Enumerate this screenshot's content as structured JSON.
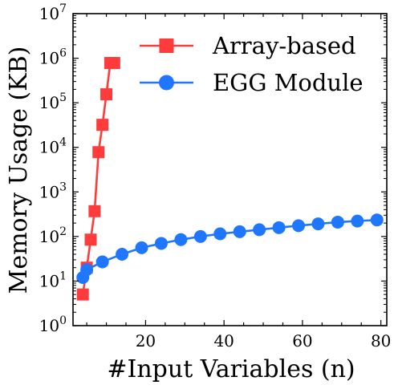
{
  "chart_data": {
    "type": "line",
    "title": "",
    "xlabel": "#Input Variables (n)",
    "ylabel": "Memory Usage (KB)",
    "xscale": "linear",
    "yscale": "log",
    "xlim": [
      1.5,
      81.5
    ],
    "ylim": [
      1,
      10000000
    ],
    "x_ticks": [
      20,
      40,
      60,
      80
    ],
    "y_ticks": [
      {
        "value": 1,
        "base": "10",
        "exp": "0"
      },
      {
        "value": 10,
        "base": "10",
        "exp": "1"
      },
      {
        "value": 100,
        "base": "10",
        "exp": "2"
      },
      {
        "value": 1000,
        "base": "10",
        "exp": "3"
      },
      {
        "value": 10000,
        "base": "10",
        "exp": "4"
      },
      {
        "value": 100000,
        "base": "10",
        "exp": "5"
      },
      {
        "value": 1000000,
        "base": "10",
        "exp": "6"
      },
      {
        "value": 10000000,
        "base": "10",
        "exp": "7"
      }
    ],
    "grid": false,
    "legend_position": "top-right",
    "series": [
      {
        "name": "Array-based",
        "color": "#ff3b3b",
        "marker": "square",
        "x": [
          4,
          5,
          6,
          7,
          8,
          9,
          10,
          11,
          12
        ],
        "y": [
          5,
          20,
          85,
          370,
          7800,
          32000,
          155000,
          780000,
          780000
        ]
      },
      {
        "name": "EGG Module",
        "color": "#1f77ff",
        "marker": "circle",
        "x": [
          4,
          5,
          9,
          14,
          19,
          24,
          29,
          34,
          39,
          44,
          49,
          54,
          59,
          64,
          69,
          74,
          79
        ],
        "y": [
          12,
          18,
          27,
          40,
          56,
          70,
          85,
          100,
          115,
          128,
          142,
          158,
          175,
          192,
          210,
          222,
          235
        ]
      }
    ]
  }
}
